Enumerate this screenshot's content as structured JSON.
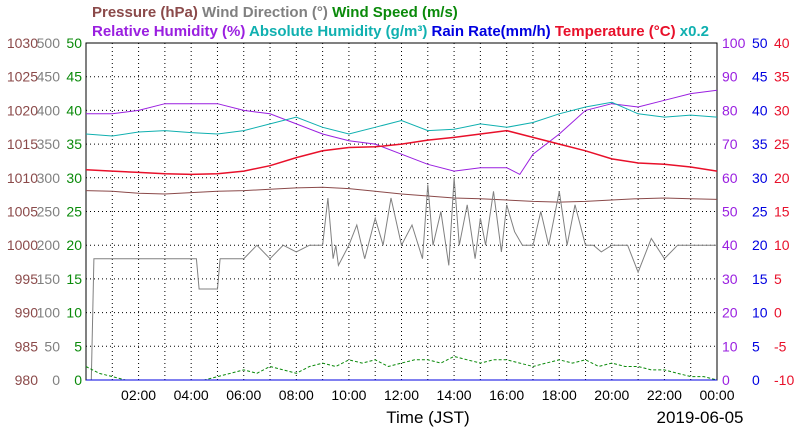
{
  "chart_data": {
    "type": "line",
    "x_axis": {
      "label": "Time (JST)",
      "date": "2019-06-05",
      "tick_labels": [
        "02:00",
        "04:00",
        "06:00",
        "08:00",
        "10:00",
        "12:00",
        "14:00",
        "16:00",
        "18:00",
        "20:00",
        "22:00",
        "00:00"
      ],
      "range_hours": [
        0,
        24
      ]
    },
    "legend_row1": [
      {
        "key": "pressure",
        "text": "Pressure (hPa)",
        "color": "#8b4a4a"
      },
      {
        "key": "wind_direction",
        "text": "Wind Direction (°)",
        "color": "#808080"
      },
      {
        "key": "wind_speed",
        "text": "Wind Speed (m/s)",
        "color": "#0a8a0a"
      }
    ],
    "legend_row2": [
      {
        "key": "relative_humidity",
        "text": "Relative Humidity (%)",
        "color": "#9a1fe0"
      },
      {
        "key": "absolute_humidity",
        "text": "Absolute Humidity (g/m³)",
        "color": "#10b0b0"
      },
      {
        "key": "rain_rate",
        "text": "Rain Rate(mm/h)",
        "color": "#0000e0"
      },
      {
        "key": "temperature",
        "text": "Temperature (°C)",
        "color": "#e8102a"
      },
      {
        "key": "abs_humidity_scale",
        "text": "x0.2",
        "color": "#10b0b0"
      }
    ],
    "axes": {
      "pressure": {
        "ticks": [
          "980",
          "985",
          "990",
          "995",
          "1000",
          "1005",
          "1010",
          "1015",
          "1020",
          "1025",
          "1030"
        ],
        "range": [
          980,
          1030
        ],
        "color": "#8b4a4a"
      },
      "wind_direction": {
        "ticks": [
          "0",
          "50",
          "100",
          "150",
          "200",
          "250",
          "300",
          "350",
          "400",
          "450",
          "500"
        ],
        "range": [
          0,
          500
        ],
        "color": "#808080"
      },
      "wind_speed": {
        "ticks": [
          "0",
          "5",
          "10",
          "15",
          "20",
          "25",
          "30",
          "35",
          "40",
          "45",
          "50"
        ],
        "range": [
          0,
          50
        ],
        "color": "#0a8a0a"
      },
      "relative_humidity": {
        "ticks": [
          "0",
          "10",
          "20",
          "30",
          "40",
          "50",
          "60",
          "70",
          "80",
          "90",
          "100"
        ],
        "range": [
          0,
          100
        ],
        "color": "#9a1fe0"
      },
      "rain_rate": {
        "ticks": [
          "0",
          "5",
          "10",
          "15",
          "20",
          "25",
          "30",
          "35",
          "40",
          "45",
          "50"
        ],
        "range": [
          0,
          50
        ],
        "color": "#0000e0"
      },
      "temperature": {
        "ticks": [
          "-10",
          "-5",
          "0",
          "5",
          "10",
          "15",
          "20",
          "25",
          "30",
          "35",
          "40"
        ],
        "range": [
          -10,
          40
        ],
        "color": "#e8102a"
      }
    },
    "grid": true,
    "series": [
      {
        "key": "pressure",
        "name": "Pressure (hPa)",
        "color": "#8b4a4a",
        "x": [
          0,
          1,
          2,
          3,
          4,
          5,
          6,
          7,
          8,
          9,
          10,
          11,
          12,
          13,
          14,
          15,
          16,
          17,
          18,
          19,
          20,
          21,
          22,
          23,
          24
        ],
        "y": [
          1008.1,
          1008.0,
          1007.7,
          1007.6,
          1007.8,
          1008.0,
          1008.1,
          1008.3,
          1008.5,
          1008.6,
          1008.4,
          1008.0,
          1007.6,
          1007.3,
          1007.0,
          1006.9,
          1006.7,
          1006.5,
          1006.4,
          1006.5,
          1006.7,
          1006.9,
          1007.0,
          1006.9,
          1006.8
        ]
      },
      {
        "key": "relative_humidity",
        "name": "Relative Humidity (%)",
        "color": "#9a1fe0",
        "x": [
          0,
          1,
          2,
          3,
          4,
          5,
          6,
          7,
          8,
          9,
          10,
          11,
          12,
          13,
          14,
          15,
          16,
          16.5,
          17,
          18,
          19,
          20,
          21,
          22,
          23,
          24
        ],
        "y": [
          79,
          79,
          80,
          82,
          82,
          82,
          80,
          79,
          76,
          73,
          71,
          70,
          67,
          64,
          62,
          63,
          63,
          61,
          67,
          73,
          80,
          82,
          81,
          83,
          85,
          86
        ]
      },
      {
        "key": "absolute_humidity",
        "name": "Absolute Humidity (g/m³)",
        "color": "#10b0b0",
        "x": [
          0,
          1,
          2,
          3,
          4,
          5,
          6,
          7,
          8,
          9,
          10,
          11,
          12,
          13,
          14,
          15,
          16,
          17,
          18,
          19,
          20,
          21,
          22,
          23,
          24
        ],
        "y": [
          36.5,
          36.2,
          36.8,
          37.0,
          36.7,
          36.5,
          37.0,
          38.0,
          39.0,
          37.5,
          36.5,
          37.5,
          38.5,
          37.0,
          37.2,
          38.0,
          37.5,
          38.2,
          39.5,
          40.5,
          41.2,
          39.5,
          39.0,
          39.3,
          39.0
        ]
      },
      {
        "key": "temperature",
        "name": "Temperature (°C)",
        "color": "#e8102a",
        "x": [
          0,
          1,
          2,
          3,
          4,
          5,
          6,
          7,
          8,
          9,
          10,
          11,
          12,
          13,
          14,
          15,
          16,
          17,
          18,
          19,
          20,
          21,
          22,
          23,
          24
        ],
        "y": [
          21.2,
          21.0,
          20.8,
          20.6,
          20.5,
          20.6,
          21.0,
          21.8,
          23.0,
          24.0,
          24.5,
          24.6,
          25.0,
          25.6,
          26.0,
          26.5,
          27.0,
          26.0,
          25.0,
          24.0,
          22.8,
          22.2,
          22.0,
          21.6,
          21.0
        ]
      },
      {
        "key": "wind_direction",
        "name": "Wind Direction (°)",
        "color": "#808080",
        "x": [
          0,
          0.2,
          0.3,
          1,
          2,
          3,
          4,
          4.2,
          4.3,
          5,
          5.1,
          5.5,
          6,
          6.5,
          7,
          7.5,
          8,
          8.5,
          9,
          9.2,
          9.4,
          9.5,
          9.6,
          10,
          10.3,
          10.6,
          11,
          11.3,
          11.6,
          12,
          12.4,
          12.8,
          13,
          13.2,
          13.5,
          13.8,
          14,
          14.2,
          14.5,
          14.8,
          15,
          15.2,
          15.5,
          15.8,
          16,
          16.3,
          16.6,
          17,
          17.3,
          17.6,
          18,
          18.3,
          18.6,
          19,
          19.3,
          19.6,
          20,
          20.3,
          20.6,
          21,
          21.5,
          22,
          22.5,
          23,
          23.5,
          24
        ],
        "y": [
          0,
          0,
          180,
          180,
          180,
          180,
          180,
          180,
          135,
          135,
          180,
          180,
          180,
          200,
          180,
          200,
          190,
          200,
          200,
          270,
          180,
          200,
          170,
          200,
          230,
          180,
          240,
          200,
          270,
          200,
          230,
          180,
          290,
          200,
          250,
          170,
          300,
          200,
          260,
          180,
          240,
          200,
          280,
          190,
          260,
          220,
          200,
          200,
          250,
          200,
          280,
          200,
          260,
          200,
          200,
          190,
          200,
          200,
          200,
          160,
          210,
          180,
          200,
          200,
          200,
          200
        ]
      },
      {
        "key": "wind_speed",
        "name": "Wind Speed (m/s)",
        "color": "#0a8a0a",
        "x": [
          0,
          0.5,
          1,
          1.5,
          2,
          2.5,
          3,
          3.5,
          4,
          4.5,
          5,
          5.5,
          6,
          6.5,
          7,
          7.5,
          8,
          8.5,
          9,
          9.5,
          10,
          10.5,
          11,
          11.5,
          12,
          12.5,
          13,
          13.5,
          14,
          14.5,
          15,
          15.5,
          16,
          16.5,
          17,
          17.5,
          18,
          18.5,
          19,
          19.5,
          20,
          20.5,
          21,
          21.5,
          22,
          22.5,
          23,
          23.5,
          24
        ],
        "y": [
          2,
          1,
          0.5,
          0,
          0,
          0,
          0,
          0,
          0,
          0,
          0.5,
          1,
          1.5,
          1,
          2,
          1.5,
          1,
          2,
          2.5,
          2,
          3,
          2.5,
          3,
          2,
          2.5,
          3,
          3,
          2.5,
          3.5,
          3,
          2.5,
          3,
          3,
          2.5,
          2,
          2.5,
          3,
          2.5,
          3,
          2,
          2.5,
          2,
          2,
          1.5,
          1.5,
          1,
          0.5,
          0.5,
          0
        ]
      },
      {
        "key": "rain_rate",
        "name": "Rain Rate(mm/h)",
        "color": "#0000e0",
        "x": [
          0,
          24
        ],
        "y": [
          0,
          0
        ]
      }
    ]
  }
}
